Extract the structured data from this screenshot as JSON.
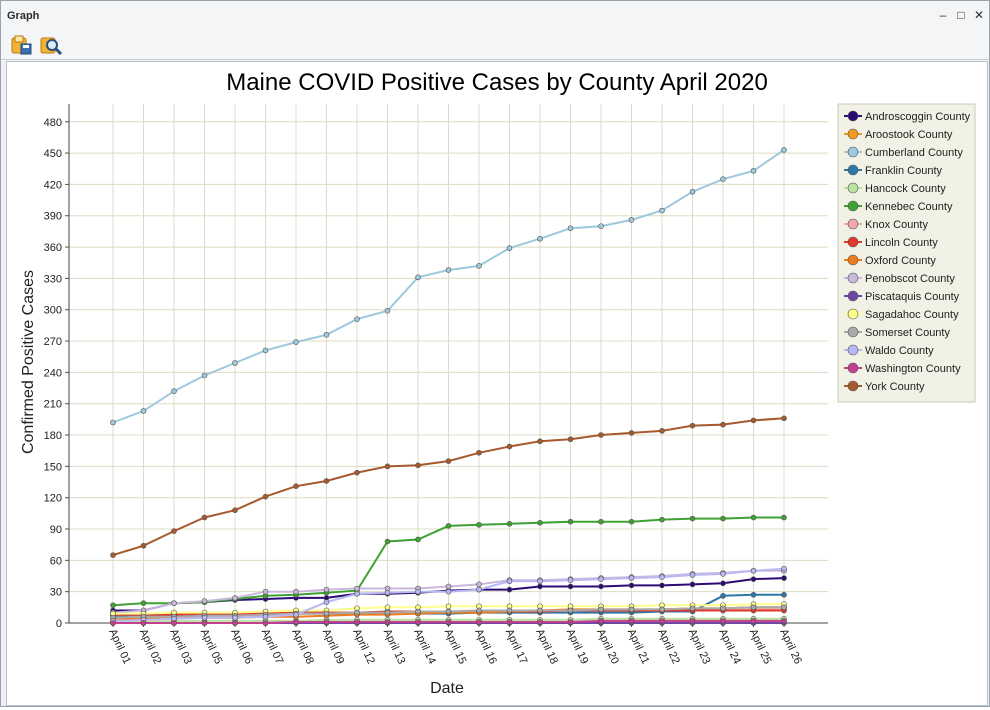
{
  "window": {
    "title": "Graph",
    "minimize_glyph": "–",
    "maximize_glyph": "□",
    "close_glyph": "✕"
  },
  "toolbar": {
    "buttons": [
      {
        "icon": "save-graph-icon"
      },
      {
        "icon": "zoom-graph-icon"
      }
    ]
  },
  "chart_data": {
    "type": "line",
    "title": "Maine COVID Positive Cases by County April 2020",
    "xlabel": "Date",
    "ylabel": "Confirmed Positive Cases",
    "ylim": [
      0,
      497
    ],
    "yticks": [
      0,
      30,
      60,
      90,
      120,
      150,
      180,
      210,
      240,
      270,
      300,
      330,
      360,
      390,
      420,
      450,
      480
    ],
    "grid": true,
    "legend_position": "right",
    "categories": [
      "April 01",
      "April 02",
      "April 03",
      "April 05",
      "April 06",
      "April 07",
      "April 08",
      "April 09",
      "April 12",
      "April 13",
      "April 14",
      "April 15",
      "April 16",
      "April 17",
      "April 18",
      "April 19",
      "April 20",
      "April 21",
      "April 22",
      "April 23",
      "April 24",
      "April 25",
      "April 26"
    ],
    "series": [
      {
        "name": "Androscoggin County",
        "color": "#2c0a73",
        "values": [
          12,
          12,
          19,
          20,
          22,
          23,
          24,
          24,
          28,
          28,
          29,
          31,
          32,
          32,
          35,
          35,
          35,
          36,
          36,
          37,
          38,
          42,
          43
        ]
      },
      {
        "name": "Aroostook County",
        "color": "#f29a20",
        "values": [
          0,
          0,
          0,
          0,
          0,
          0,
          1,
          1,
          1,
          1,
          1,
          1,
          1,
          1,
          1,
          1,
          1,
          2,
          2,
          2,
          2,
          2,
          2
        ]
      },
      {
        "name": "Cumberland County",
        "color": "#9ec9dc",
        "values": [
          192,
          203,
          222,
          237,
          249,
          261,
          269,
          276,
          291,
          299,
          331,
          338,
          342,
          359,
          368,
          378,
          380,
          386,
          395,
          413,
          425,
          433,
          453
        ]
      },
      {
        "name": "Franklin County",
        "color": "#2e78a8",
        "values": [
          7,
          7,
          7,
          8,
          8,
          8,
          9,
          9,
          9,
          9,
          9,
          9,
          10,
          10,
          10,
          10,
          10,
          10,
          11,
          11,
          26,
          27,
          27
        ]
      },
      {
        "name": "Hancock County",
        "color": "#b9e2a0",
        "values": [
          1,
          1,
          2,
          2,
          2,
          2,
          2,
          3,
          3,
          3,
          3,
          3,
          3,
          3,
          3,
          3,
          4,
          4,
          4,
          4,
          4,
          4,
          4
        ]
      },
      {
        "name": "Kennebec County",
        "color": "#3fa134",
        "values": [
          17,
          19,
          19,
          20,
          23,
          26,
          27,
          29,
          31,
          78,
          80,
          93,
          94,
          95,
          96,
          97,
          97,
          97,
          99,
          100,
          100,
          101,
          101
        ]
      },
      {
        "name": "Knox County",
        "color": "#f2a8a8",
        "values": [
          8,
          8,
          8,
          9,
          9,
          9,
          10,
          10,
          10,
          10,
          10,
          11,
          11,
          11,
          11,
          12,
          12,
          12,
          12,
          12,
          12,
          13,
          13
        ]
      },
      {
        "name": "Lincoln County",
        "color": "#e0362c",
        "values": [
          8,
          8,
          8,
          9,
          9,
          9,
          10,
          10,
          10,
          11,
          11,
          11,
          11,
          11,
          11,
          12,
          12,
          12,
          12,
          12,
          12,
          12,
          12
        ]
      },
      {
        "name": "Oxford County",
        "color": "#f07c1e",
        "values": [
          4,
          4,
          5,
          5,
          5,
          6,
          6,
          7,
          8,
          8,
          9,
          10,
          10,
          11,
          12,
          13,
          13,
          13,
          13,
          14,
          14,
          15,
          15
        ]
      },
      {
        "name": "Penobscot County",
        "color": "#c9b8dc",
        "values": [
          10,
          12,
          19,
          21,
          24,
          30,
          30,
          32,
          33,
          33,
          33,
          35,
          37,
          41,
          41,
          42,
          43,
          44,
          45,
          47,
          48,
          50,
          50
        ]
      },
      {
        "name": "Piscataquis County",
        "color": "#6f45a6",
        "values": [
          0,
          0,
          0,
          0,
          0,
          0,
          0,
          0,
          0,
          0,
          0,
          0,
          0,
          0,
          0,
          0,
          0,
          0,
          0,
          0,
          0,
          0,
          0
        ]
      },
      {
        "name": "Sagadahoc County",
        "color": "#ffff8a",
        "values": [
          9,
          9,
          10,
          10,
          10,
          11,
          12,
          12,
          14,
          15,
          15,
          16,
          16,
          16,
          16,
          16,
          16,
          16,
          17,
          17,
          17,
          18,
          18
        ]
      },
      {
        "name": "Somerset County",
        "color": "#a9a9a9",
        "values": [
          5,
          6,
          6,
          7,
          7,
          8,
          9,
          9,
          10,
          10,
          11,
          11,
          12,
          12,
          12,
          12,
          13,
          13,
          13,
          14,
          14,
          15,
          15
        ]
      },
      {
        "name": "Waldo County",
        "color": "#b8b8f4",
        "values": [
          2,
          3,
          4,
          5,
          5,
          6,
          8,
          20,
          28,
          29,
          30,
          30,
          32,
          40,
          40,
          41,
          42,
          43,
          44,
          46,
          47,
          50,
          52
        ]
      },
      {
        "name": "Washington County",
        "color": "#c2408e",
        "values": [
          0,
          0,
          0,
          0,
          0,
          0,
          1,
          1,
          1,
          1,
          1,
          1,
          1,
          1,
          1,
          1,
          2,
          2,
          2,
          2,
          2,
          2,
          2
        ]
      },
      {
        "name": "York County",
        "color": "#a65a2e",
        "values": [
          65,
          74,
          88,
          101,
          108,
          121,
          131,
          136,
          144,
          150,
          151,
          155,
          163,
          169,
          174,
          176,
          180,
          182,
          184,
          189,
          190,
          194,
          196
        ]
      }
    ]
  }
}
